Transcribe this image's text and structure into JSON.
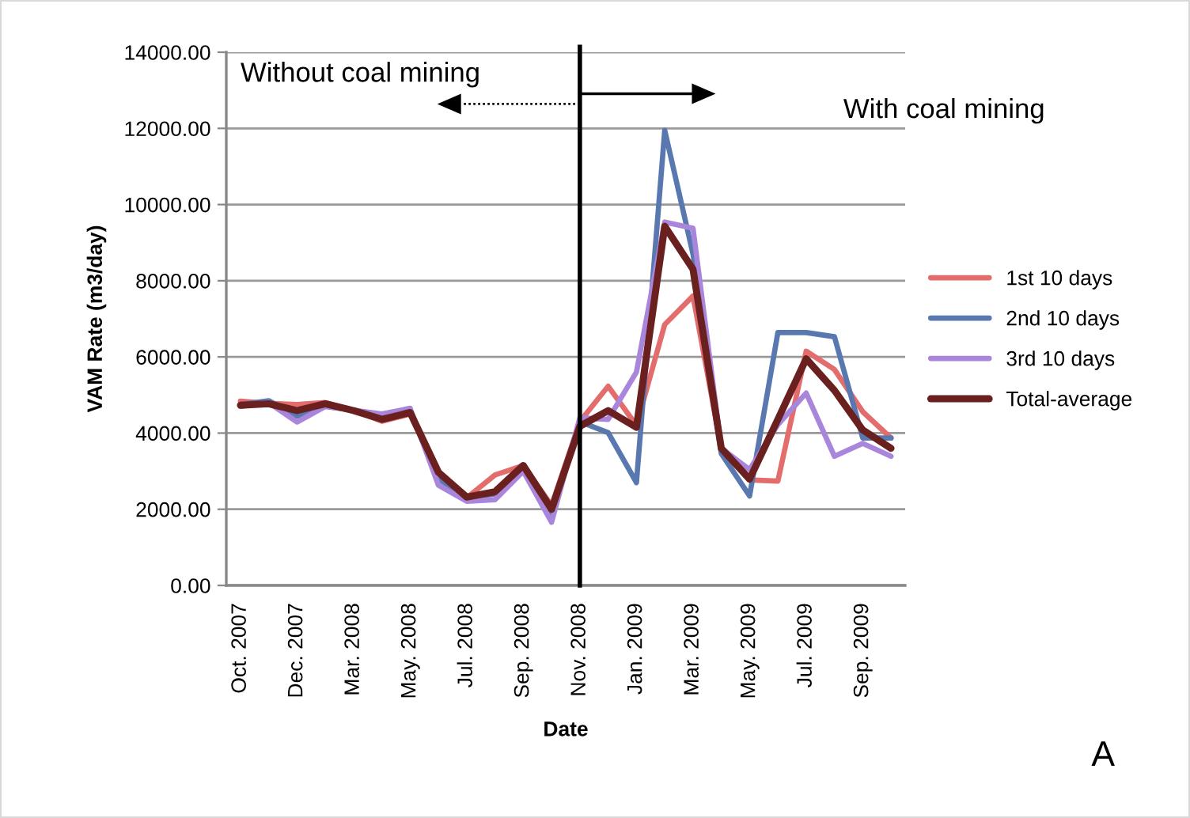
{
  "chart_data": {
    "type": "line",
    "xlabel": "Date",
    "ylabel": "VAM Rate (m3/day)",
    "categories": [
      "Oct. 2007",
      null,
      "Dec. 2007",
      null,
      "Mar. 2008",
      null,
      "May. 2008",
      null,
      "Jul. 2008",
      null,
      "Sep. 2008",
      null,
      "Nov. 2008",
      null,
      "Jan. 2009",
      null,
      "Mar. 2009",
      null,
      "May. 2009",
      null,
      "Jul. 2009",
      null,
      "Sep. 2009",
      null
    ],
    "series": [
      {
        "name": "1st 10 days",
        "color": "#e36c6c",
        "values": [
          4840,
          4780,
          4750,
          4800,
          4600,
          4310,
          4500,
          2950,
          2300,
          2900,
          3150,
          2100,
          4300,
          5230,
          4200,
          6850,
          7600,
          3600,
          2770,
          2740,
          6150,
          5670,
          4560,
          3870
        ]
      },
      {
        "name": "2nd 10 days",
        "color": "#5a78b0",
        "values": [
          4750,
          4850,
          4450,
          4700,
          4600,
          4450,
          4600,
          2800,
          2300,
          2400,
          3100,
          1850,
          4300,
          4010,
          2700,
          11950,
          8700,
          3460,
          2350,
          6640,
          6640,
          6530,
          3870,
          3870
        ]
      },
      {
        "name": "3rd 10 days",
        "color": "#a986dc",
        "values": [
          4700,
          4800,
          4290,
          4700,
          4600,
          4500,
          4650,
          2630,
          2210,
          2250,
          3000,
          1660,
          4400,
          4360,
          5600,
          9540,
          9380,
          3600,
          3040,
          4220,
          5050,
          3390,
          3730,
          3390
        ]
      },
      {
        "name": "Total-average",
        "color": "#6b2020",
        "values": [
          4730,
          4770,
          4590,
          4770,
          4590,
          4360,
          4540,
          2970,
          2320,
          2460,
          3150,
          2000,
          4180,
          4590,
          4150,
          9430,
          8300,
          3600,
          2790,
          4360,
          5950,
          5120,
          4080,
          3600
        ]
      }
    ],
    "ylim": [
      0,
      14000
    ],
    "yticks": [
      {
        "value": 0,
        "label": "0.00"
      },
      {
        "value": 2000,
        "label": "2000.00"
      },
      {
        "value": 4000,
        "label": "4000.00"
      },
      {
        "value": 6000,
        "label": "6000.00"
      },
      {
        "value": 8000,
        "label": "8000.00"
      },
      {
        "value": 10000,
        "label": "10000.00"
      },
      {
        "value": 12000,
        "label": "12000.00"
      },
      {
        "value": 14000,
        "label": "14000.00"
      }
    ],
    "grid": "y",
    "legend": "right",
    "line_style": "solid",
    "ref_lines": [
      {
        "axis": "x",
        "value": "Nov. 2008",
        "color": "#000000"
      }
    ],
    "annotations": [
      "Without coal mining",
      "With coal mining",
      "A"
    ]
  }
}
